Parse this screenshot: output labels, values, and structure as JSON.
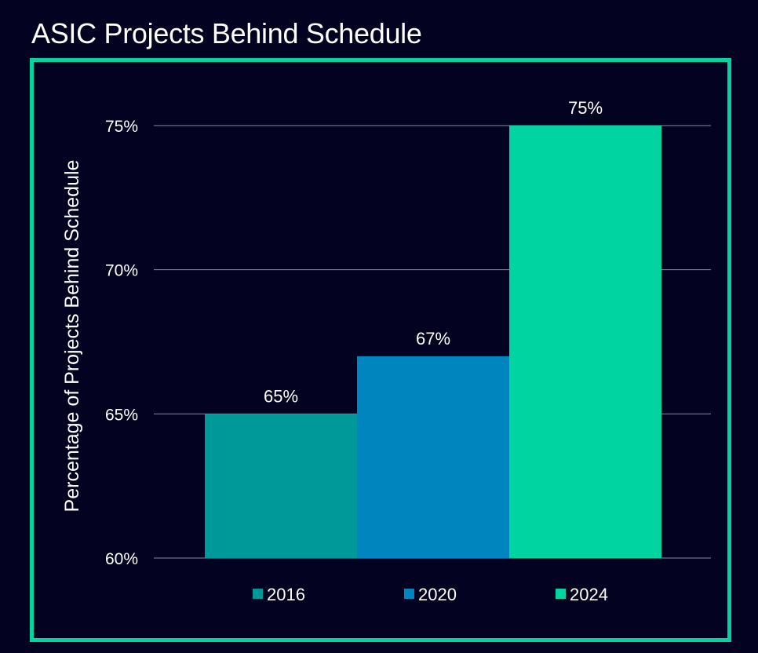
{
  "page": {
    "background": "#030321",
    "frame_color": "#00d4a0"
  },
  "chart_data": {
    "type": "bar",
    "title": "ASIC Projects Behind Schedule",
    "xlabel": "",
    "ylabel": "Percentage of Projects Behind Schedule",
    "ylim": [
      60,
      75
    ],
    "yticks": [
      60,
      65,
      70,
      75
    ],
    "ytick_labels": [
      "60%",
      "65%",
      "70%",
      "75%"
    ],
    "grid": true,
    "legend_position": "bottom",
    "categories": [
      "2016",
      "2020",
      "2024"
    ],
    "values": [
      65,
      67,
      75
    ],
    "data_labels": [
      "65%",
      "67%",
      "75%"
    ],
    "colors": [
      "#00999a",
      "#0085be",
      "#00d4a0"
    ]
  }
}
